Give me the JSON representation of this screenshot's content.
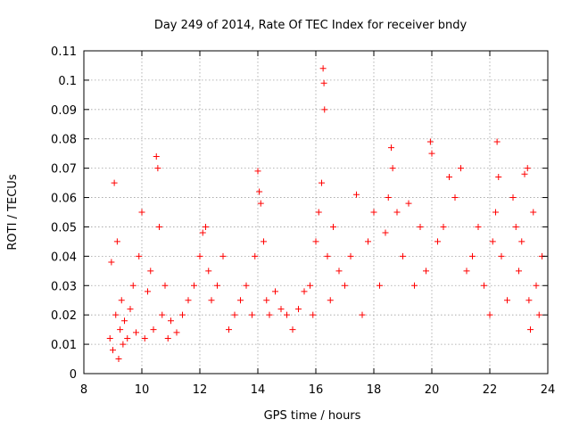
{
  "chart_data": {
    "type": "scatter",
    "title": "Day 249 of 2014, Rate Of TEC Index for receiver bndy",
    "xlabel": "GPS time / hours",
    "ylabel": "ROTI / TECUs",
    "xlim": [
      8,
      24
    ],
    "ylim": [
      0,
      0.11
    ],
    "xticks": [
      8,
      10,
      12,
      14,
      16,
      18,
      20,
      22,
      24
    ],
    "xtick_labels": [
      "8",
      "10",
      "12",
      "14",
      "16",
      "18",
      "20",
      "22",
      "24"
    ],
    "yticks": [
      0,
      0.01,
      0.02,
      0.03,
      0.04,
      0.05,
      0.06,
      0.07,
      0.08,
      0.09,
      0.1,
      0.11
    ],
    "ytick_labels": [
      "0",
      "0.01",
      "0.02",
      "0.03",
      "0.04",
      "0.05",
      "0.06",
      "0.07",
      "0.08",
      "0.09",
      "0.1",
      "0.11"
    ],
    "grid": true,
    "marker": "+",
    "color": "#ff0000",
    "series": [
      {
        "name": "ROTI",
        "x": [
          8.9,
          8.95,
          9.0,
          9.05,
          9.1,
          9.15,
          9.2,
          9.25,
          9.3,
          9.35,
          9.4,
          9.5,
          9.6,
          9.7,
          9.8,
          9.9,
          10.0,
          10.1,
          10.2,
          10.3,
          10.4,
          10.5,
          10.55,
          10.6,
          10.7,
          10.8,
          10.9,
          11.0,
          11.2,
          11.4,
          11.6,
          11.8,
          12.0,
          12.1,
          12.2,
          12.3,
          12.4,
          12.6,
          12.8,
          13.0,
          13.2,
          13.4,
          13.6,
          13.8,
          13.9,
          14.0,
          14.05,
          14.1,
          14.2,
          14.3,
          14.4,
          14.6,
          14.8,
          15.0,
          15.2,
          15.4,
          15.6,
          15.8,
          15.9,
          16.0,
          16.1,
          16.2,
          16.25,
          16.28,
          16.3,
          16.4,
          16.5,
          16.6,
          16.8,
          17.0,
          17.2,
          17.4,
          17.6,
          17.8,
          18.0,
          18.2,
          18.4,
          18.5,
          18.6,
          18.65,
          18.8,
          19.0,
          19.2,
          19.4,
          19.6,
          19.8,
          19.95,
          20.0,
          20.2,
          20.4,
          20.6,
          20.8,
          21.0,
          21.2,
          21.4,
          21.6,
          21.8,
          22.0,
          22.1,
          22.2,
          22.25,
          22.3,
          22.4,
          22.6,
          22.8,
          22.9,
          23.0,
          23.1,
          23.2,
          23.3,
          23.35,
          23.4,
          23.5,
          23.6,
          23.7,
          23.8
        ],
        "y": [
          0.012,
          0.038,
          0.008,
          0.065,
          0.02,
          0.045,
          0.005,
          0.015,
          0.025,
          0.01,
          0.018,
          0.012,
          0.022,
          0.03,
          0.014,
          0.04,
          0.055,
          0.012,
          0.028,
          0.035,
          0.015,
          0.074,
          0.07,
          0.05,
          0.02,
          0.03,
          0.012,
          0.018,
          0.014,
          0.02,
          0.025,
          0.03,
          0.04,
          0.048,
          0.05,
          0.035,
          0.025,
          0.03,
          0.04,
          0.015,
          0.02,
          0.025,
          0.03,
          0.02,
          0.04,
          0.069,
          0.062,
          0.058,
          0.045,
          0.025,
          0.02,
          0.028,
          0.022,
          0.02,
          0.015,
          0.022,
          0.028,
          0.03,
          0.02,
          0.045,
          0.055,
          0.065,
          0.104,
          0.099,
          0.09,
          0.04,
          0.025,
          0.05,
          0.035,
          0.03,
          0.04,
          0.061,
          0.02,
          0.045,
          0.055,
          0.03,
          0.048,
          0.06,
          0.077,
          0.07,
          0.055,
          0.04,
          0.058,
          0.03,
          0.05,
          0.035,
          0.079,
          0.075,
          0.045,
          0.05,
          0.067,
          0.06,
          0.07,
          0.035,
          0.04,
          0.05,
          0.03,
          0.02,
          0.045,
          0.055,
          0.079,
          0.067,
          0.04,
          0.025,
          0.06,
          0.05,
          0.035,
          0.045,
          0.068,
          0.07,
          0.025,
          0.015,
          0.055,
          0.03,
          0.02,
          0.04
        ]
      }
    ]
  }
}
